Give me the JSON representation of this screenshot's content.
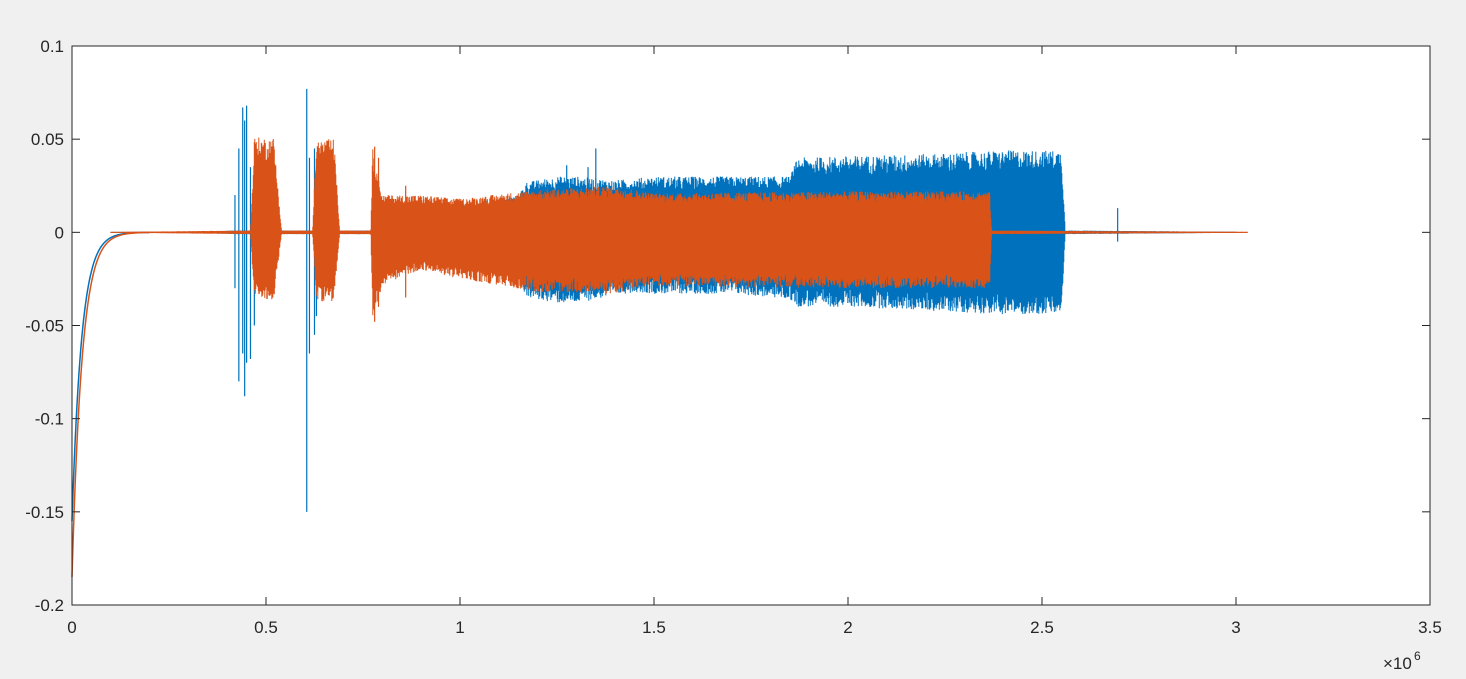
{
  "chart_data": {
    "type": "line",
    "title": "",
    "xlabel": "",
    "ylabel": "",
    "xlim": [
      0,
      3500000
    ],
    "ylim": [
      -0.2,
      0.1
    ],
    "x_ticks": [
      0,
      500000,
      1000000,
      1500000,
      2000000,
      2500000,
      3000000,
      3500000
    ],
    "x_tick_labels": [
      "0",
      "0.5",
      "1",
      "1.5",
      "2",
      "2.5",
      "3",
      "3.5"
    ],
    "y_ticks": [
      -0.2,
      -0.15,
      -0.1,
      -0.05,
      0,
      0.05,
      0.1
    ],
    "y_tick_labels": [
      "-0.2",
      "-0.15",
      "-0.1",
      "-0.05",
      "0",
      "0.05",
      "0.1"
    ],
    "x_exponent": {
      "base": "×10",
      "power": "6"
    },
    "grid": false,
    "box": true,
    "series": [
      {
        "color": "#0072BD",
        "initial_decay": {
          "start": -0.155,
          "time_constant": 25000
        },
        "envelope": [
          [
            0,
            0.0,
            0.0
          ],
          [
            350000,
            0.0005,
            -0.0005
          ],
          [
            420000,
            0.001,
            -0.001
          ],
          [
            600000,
            0.001,
            -0.001
          ],
          [
            770000,
            0.001,
            -0.001
          ],
          [
            1000000,
            0.015,
            -0.018
          ],
          [
            1150000,
            0.02,
            -0.022
          ],
          [
            1170000,
            0.027,
            -0.035
          ],
          [
            1250000,
            0.03,
            -0.038
          ],
          [
            1300000,
            0.03,
            -0.038
          ],
          [
            1400000,
            0.028,
            -0.034
          ],
          [
            1450000,
            0.029,
            -0.032
          ],
          [
            1500000,
            0.03,
            -0.033
          ],
          [
            1700000,
            0.03,
            -0.033
          ],
          [
            1850000,
            0.03,
            -0.036
          ],
          [
            1870000,
            0.04,
            -0.04
          ],
          [
            2000000,
            0.041,
            -0.04
          ],
          [
            2200000,
            0.042,
            -0.042
          ],
          [
            2400000,
            0.044,
            -0.044
          ],
          [
            2550000,
            0.044,
            -0.044
          ],
          [
            2560000,
            0.001,
            -0.001
          ],
          [
            3000000,
            0.0003,
            -0.0003
          ]
        ],
        "spikes": [
          [
            420000,
            0.02,
            -0.03
          ],
          [
            430000,
            0.045,
            -0.08
          ],
          [
            440000,
            0.067,
            -0.065
          ],
          [
            445000,
            0.06,
            -0.088
          ],
          [
            450000,
            0.068,
            -0.07
          ],
          [
            460000,
            0.035,
            -0.068
          ],
          [
            470000,
            0.025,
            -0.05
          ],
          [
            605000,
            0.077,
            -0.15
          ],
          [
            612000,
            0.04,
            -0.065
          ],
          [
            625000,
            0.045,
            -0.055
          ],
          [
            630000,
            0.035,
            -0.045
          ],
          [
            1350000,
            0.045,
            -0.02
          ],
          [
            1330000,
            0.035,
            -0.015
          ],
          [
            1275000,
            0.036,
            -0.012
          ],
          [
            2505000,
            0.035,
            -0.03
          ],
          [
            2695000,
            0.013,
            -0.005
          ]
        ]
      },
      {
        "color": "#D95319",
        "initial_decay": {
          "start": -0.185,
          "time_constant": 26000
        },
        "envelope": [
          [
            0,
            0.0,
            0.0
          ],
          [
            460000,
            0.001,
            -0.001
          ],
          [
            470000,
            0.051,
            -0.036
          ],
          [
            520000,
            0.051,
            -0.036
          ],
          [
            540000,
            0.001,
            -0.001
          ],
          [
            620000,
            0.001,
            -0.001
          ],
          [
            630000,
            0.05,
            -0.037
          ],
          [
            675000,
            0.05,
            -0.037
          ],
          [
            690000,
            0.001,
            -0.001
          ],
          [
            770000,
            0.001,
            -0.001
          ],
          [
            775000,
            0.045,
            -0.048
          ],
          [
            800000,
            0.02,
            -0.028
          ],
          [
            900000,
            0.02,
            -0.02
          ],
          [
            1000000,
            0.018,
            -0.025
          ],
          [
            1200000,
            0.023,
            -0.032
          ],
          [
            1400000,
            0.025,
            -0.033
          ],
          [
            1500000,
            0.021,
            -0.029
          ],
          [
            2000000,
            0.022,
            -0.03
          ],
          [
            2365000,
            0.022,
            -0.03
          ],
          [
            2370000,
            0.001,
            -0.001
          ],
          [
            3030000,
            0.0003,
            -0.0003
          ]
        ],
        "spikes": [
          [
            780000,
            0.046,
            -0.048
          ],
          [
            790000,
            0.04,
            -0.04
          ],
          [
            860000,
            0.025,
            -0.035
          ]
        ]
      }
    ]
  }
}
